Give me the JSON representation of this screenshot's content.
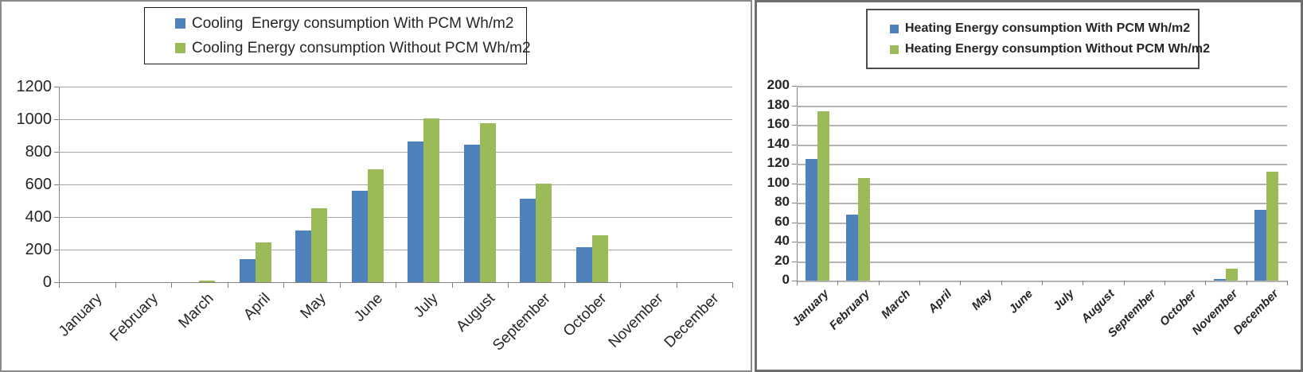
{
  "colors": {
    "with_pcm_blue": "#4f81bd",
    "without_pcm_green": "#9bbb59",
    "gridline_gray": "#a6a6a6",
    "axis_gray": "#808080"
  },
  "chart_data": [
    {
      "type": "bar",
      "title": "",
      "xlabel": "",
      "ylabel": "",
      "categories": [
        "January",
        "February",
        "March",
        "April",
        "May",
        "June",
        "July",
        "August",
        "September",
        "October",
        "November",
        "December"
      ],
      "series": [
        {
          "name": "Cooling  Energy consumption With PCM Wh/m2",
          "color": "#4f81bd",
          "values": [
            0,
            0,
            0,
            142,
            318,
            560,
            862,
            845,
            510,
            215,
            0,
            0
          ]
        },
        {
          "name": "Cooling Energy consumption Without PCM Wh/m2",
          "color": "#9bbb59",
          "values": [
            0,
            0,
            12,
            245,
            455,
            693,
            1005,
            975,
            605,
            288,
            0,
            0
          ]
        }
      ],
      "ylim": [
        0,
        1200
      ],
      "ytick_step": 200,
      "yticks": [
        0,
        200,
        400,
        600,
        800,
        1000,
        1200
      ],
      "grid": true,
      "legend_position": "top"
    },
    {
      "type": "bar",
      "title": "",
      "xlabel": "",
      "ylabel": "",
      "categories": [
        "January",
        "February",
        "March",
        "April",
        "May",
        "June",
        "July",
        "August",
        "September",
        "October",
        "November",
        "December"
      ],
      "series": [
        {
          "name": "Heating Energy consumption With PCM Wh/m2",
          "color": "#4f81bd",
          "values": [
            125,
            68,
            0,
            0,
            0,
            0,
            0,
            0,
            0,
            0,
            2,
            73
          ]
        },
        {
          "name": "Heating Energy consumption Without PCM Wh/m2",
          "color": "#9bbb59",
          "values": [
            174,
            105,
            0,
            0,
            0,
            0,
            0,
            0,
            0,
            0,
            12,
            112
          ]
        }
      ],
      "ylim": [
        0,
        200
      ],
      "ytick_step": 20,
      "yticks": [
        0,
        20,
        40,
        60,
        80,
        100,
        120,
        140,
        160,
        180,
        200
      ],
      "grid": true,
      "legend_position": "top"
    }
  ]
}
